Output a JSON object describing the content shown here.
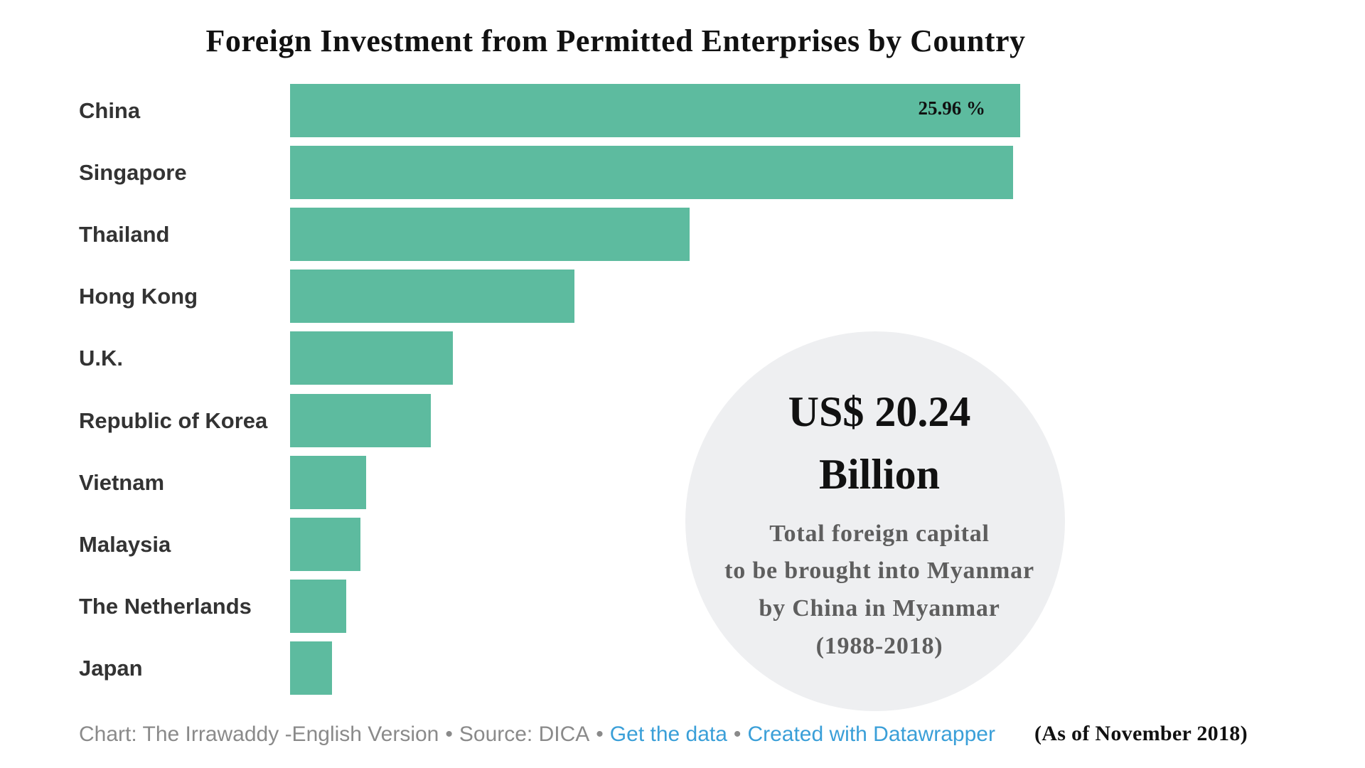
{
  "chart_data": {
    "type": "bar",
    "orientation": "horizontal",
    "title": "Foreign Investment from Permitted Enterprises by Country",
    "categories": [
      "China",
      "Singapore",
      "Thailand",
      "Hong Kong",
      "U.K.",
      "Republic of Korea",
      "Vietnam",
      "Malaysia",
      "The Netherlands",
      "Japan"
    ],
    "values": [
      25.96,
      25.7,
      14.2,
      10.1,
      5.8,
      5.0,
      2.7,
      2.5,
      2.0,
      1.5
    ],
    "data_labels": [
      {
        "category": "China",
        "text": "25.96 %"
      }
    ],
    "xlabel": "",
    "ylabel": "",
    "grid": false,
    "legend": "none",
    "bar_color": "#5dbb9f"
  },
  "callout": {
    "amount": "US$ 20.24",
    "amount_unit": "Billion",
    "description_lines": [
      "Total foreign capital",
      "to be brought into Myanmar",
      "by China in Myanmar",
      "(1988-2018)"
    ],
    "background": "#eeeff1"
  },
  "footer": {
    "credit": "Chart: The Irrawaddy -English Version",
    "separator": "•",
    "source": "Source: DICA",
    "get_data_link": "Get the data",
    "datawrapper_link": "Created with Datawrapper",
    "text_color": "#8a8a8a",
    "link_color": "#3a9fd8"
  },
  "note": "(As of November 2018)"
}
